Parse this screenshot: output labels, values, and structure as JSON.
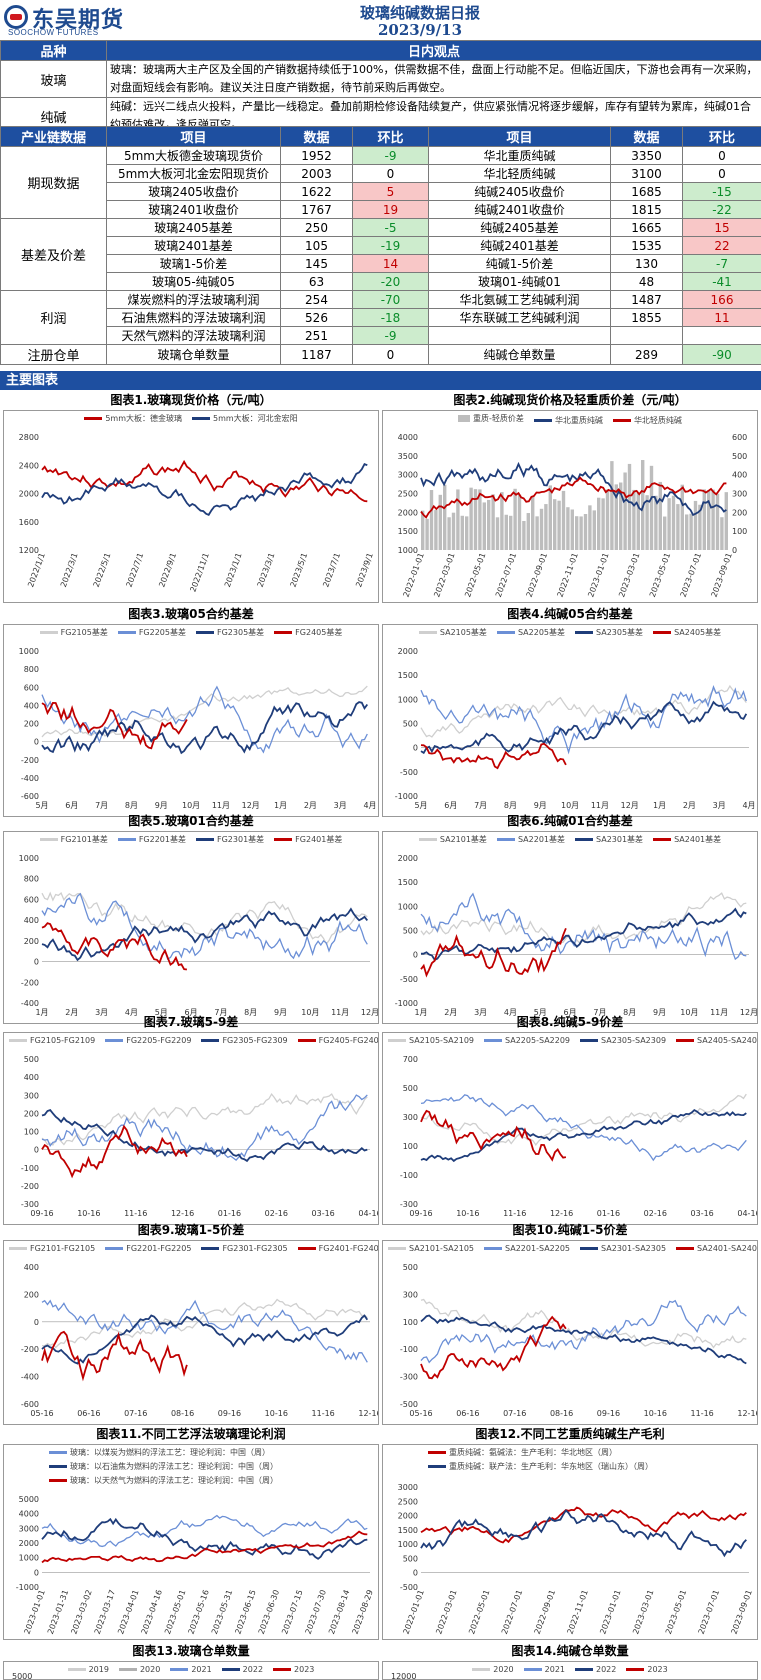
{
  "header": {
    "logo_cn": "东吴期货",
    "logo_en": "SOOCHOW FUTURES",
    "title": "玻璃纯碱数据日报",
    "date": "2023/9/13"
  },
  "views": {
    "col_variety": "品种",
    "col_view": "日内观点",
    "rows": [
      {
        "name": "玻璃",
        "text": "玻璃：玻璃两大主产区及全国的产销数据持续低于100%，供需数据不佳，盘面上行动能不足。但临近国庆，下游也会再有一次采购，对盘面短线会有影响。建议关注日度产销数据，待节前采购后再做空。"
      },
      {
        "name": "纯碱",
        "text": "纯碱：远兴二线点火投料，产量比一线稳定。叠加前期检修设备陆续复产，供应紧张情况将逐步缓解，库存有望转为累库，纯碱01合约预估难改，逢反弹可空。"
      }
    ]
  },
  "table": {
    "headers": [
      "产业链数据",
      "项目",
      "数据",
      "环比",
      "项目",
      "数据",
      "环比"
    ],
    "groups": [
      {
        "name": "期现数据",
        "rows": [
          {
            "item1": "5mm大板德金玻璃现货价",
            "v1": "1952",
            "c1": "-9",
            "s1": "grn",
            "item2": "华北重质纯碱",
            "v2": "3350",
            "c2": "0",
            "s2": ""
          },
          {
            "item1": "5mm大板河北金宏阳现货价",
            "v1": "2003",
            "c1": "0",
            "s1": "",
            "item2": "华北轻质纯碱",
            "v2": "3100",
            "c2": "0",
            "s2": ""
          },
          {
            "item1": "玻璃2405收盘价",
            "v1": "1622",
            "c1": "5",
            "s1": "red",
            "item2": "纯碱2405收盘价",
            "v2": "1685",
            "c2": "-15",
            "s2": "grn"
          },
          {
            "item1": "玻璃2401收盘价",
            "v1": "1767",
            "c1": "19",
            "s1": "red",
            "item2": "纯碱2401收盘价",
            "v2": "1815",
            "c2": "-22",
            "s2": "grn"
          }
        ]
      },
      {
        "name": "基差及价差",
        "rows": [
          {
            "item1": "玻璃2405基差",
            "v1": "250",
            "c1": "-5",
            "s1": "grn",
            "item2": "纯碱2405基差",
            "v2": "1665",
            "c2": "15",
            "s2": "red"
          },
          {
            "item1": "玻璃2401基差",
            "v1": "105",
            "c1": "-19",
            "s1": "grn",
            "item2": "纯碱2401基差",
            "v2": "1535",
            "c2": "22",
            "s2": "red"
          },
          {
            "item1": "玻璃1-5价差",
            "v1": "145",
            "c1": "14",
            "s1": "red",
            "item2": "纯碱1-5价差",
            "v2": "130",
            "c2": "-7",
            "s2": "grn"
          },
          {
            "item1": "玻璃05-纯碱05",
            "v1": "63",
            "c1": "-20",
            "s1": "grn",
            "item2": "玻璃01-纯碱01",
            "v2": "48",
            "c2": "-41",
            "s2": "grn"
          }
        ]
      },
      {
        "name": "利润",
        "rows": [
          {
            "item1": "煤炭燃料的浮法玻璃利润",
            "v1": "254",
            "c1": "-70",
            "s1": "grn",
            "item2": "华北氨碱工艺纯碱利润",
            "v2": "1487",
            "c2": "166",
            "s2": "red"
          },
          {
            "item1": "石油焦燃料的浮法玻璃利润",
            "v1": "526",
            "c1": "-18",
            "s1": "grn",
            "item2": "华东联碱工艺纯碱利润",
            "v2": "1855",
            "c2": "11",
            "s2": "red"
          },
          {
            "item1": "天然气燃料的浮法玻璃利润",
            "v1": "251",
            "c1": "-9",
            "s1": "grn",
            "item2": "",
            "v2": "",
            "c2": "",
            "s2": ""
          }
        ]
      },
      {
        "name": "注册仓单",
        "rows": [
          {
            "item1": "玻璃仓单数量",
            "v1": "1187",
            "c1": "0",
            "s1": "",
            "item2": "纯碱仓单数量",
            "v2": "289",
            "c2": "-90",
            "s2": "grn"
          }
        ]
      }
    ]
  },
  "section_title": "主要图表",
  "colors": {
    "red": "#c00000",
    "navy": "#1f3d7a",
    "blue": "#6b8fd6",
    "lightgray": "#cfcfcf",
    "gray": "#b0b0b0",
    "header_bg": "#1e4fa0"
  },
  "charts": [
    {
      "caption": "图表1.玻璃现货价格（元/吨）",
      "legend": [
        {
          "name": "5mm大板：德金玻璃",
          "color": "#c00000"
        },
        {
          "name": "5mm大板：河北金宏阳",
          "color": "#1f3d7a"
        }
      ],
      "yticks": [
        "2800",
        "2400",
        "2000",
        "1600",
        "1200"
      ],
      "xticks": [
        "2022/1/1",
        "2022/3/1",
        "2022/5/1",
        "2022/7/1",
        "2022/9/1",
        "2022/11/1",
        "2023/1/1",
        "2023/3/1",
        "2023/5/1",
        "2023/7/1",
        "2023/9/1"
      ],
      "xrot": true
    },
    {
      "caption": "图表2.纯碱现货价格及轻重质价差（元/吨）",
      "legend": [
        {
          "name": "重质-轻质价差",
          "color": "#bdbdbd"
        },
        {
          "name": "华北重质纯碱",
          "color": "#1f3d7a"
        },
        {
          "name": "华北轻质纯碱",
          "color": "#c00000"
        }
      ],
      "yticks": [
        "4000",
        "3500",
        "3000",
        "2500",
        "2000",
        "1500",
        "1000"
      ],
      "y2ticks": [
        "600",
        "500",
        "400",
        "300",
        "200",
        "100",
        "0"
      ],
      "xticks": [
        "2022-01-01",
        "2022-03-01",
        "2022-05-01",
        "2022-07-01",
        "2022-09-01",
        "2022-11-01",
        "2023-01-01",
        "2023-03-01",
        "2023-05-01",
        "2023-07-01",
        "2023-09-01"
      ],
      "xrot": true
    },
    {
      "caption": "图表3.玻璃05合约基差",
      "legend": [
        {
          "name": "FG2105基差",
          "color": "#cfcfcf"
        },
        {
          "name": "FG2205基差",
          "color": "#6b8fd6"
        },
        {
          "name": "FG2305基差",
          "color": "#1f3d7a"
        },
        {
          "name": "FG2405基差",
          "color": "#c00000"
        }
      ],
      "yticks": [
        "1000",
        "800",
        "600",
        "400",
        "200",
        "0",
        "-200",
        "-400",
        "-600"
      ],
      "xticks": [
        "5月",
        "6月",
        "7月",
        "8月",
        "9月",
        "10月",
        "11月",
        "12月",
        "1月",
        "2月",
        "3月",
        "4月"
      ]
    },
    {
      "caption": "图表4.纯碱05合约基差",
      "legend": [
        {
          "name": "SA2105基差",
          "color": "#cfcfcf"
        },
        {
          "name": "SA2205基差",
          "color": "#6b8fd6"
        },
        {
          "name": "SA2305基差",
          "color": "#1f3d7a"
        },
        {
          "name": "SA2405基差",
          "color": "#c00000"
        }
      ],
      "yticks": [
        "2000",
        "1500",
        "1000",
        "500",
        "0",
        "-500",
        "-1000"
      ],
      "xticks": [
        "5月",
        "6月",
        "7月",
        "8月",
        "9月",
        "10月",
        "11月",
        "12月",
        "1月",
        "2月",
        "3月",
        "4月"
      ]
    },
    {
      "caption": "图表5.玻璃01合约基差",
      "legend": [
        {
          "name": "FG2101基差",
          "color": "#cfcfcf"
        },
        {
          "name": "FG2201基差",
          "color": "#6b8fd6"
        },
        {
          "name": "FG2301基差",
          "color": "#1f3d7a"
        },
        {
          "name": "FG2401基差",
          "color": "#c00000"
        }
      ],
      "yticks": [
        "1000",
        "800",
        "600",
        "400",
        "200",
        "0",
        "-200",
        "-400"
      ],
      "xticks": [
        "1月",
        "2月",
        "3月",
        "4月",
        "5月",
        "6月",
        "7月",
        "8月",
        "9月",
        "10月",
        "11月",
        "12月"
      ]
    },
    {
      "caption": "图表6.纯碱01合约基差",
      "legend": [
        {
          "name": "SA2101基差",
          "color": "#cfcfcf"
        },
        {
          "name": "SA2201基差",
          "color": "#6b8fd6"
        },
        {
          "name": "SA2301基差",
          "color": "#1f3d7a"
        },
        {
          "name": "SA2401基差",
          "color": "#c00000"
        }
      ],
      "yticks": [
        "2000",
        "1500",
        "1000",
        "500",
        "0",
        "-500",
        "-1000"
      ],
      "xticks": [
        "1月",
        "2月",
        "3月",
        "4月",
        "5月",
        "6月",
        "7月",
        "8月",
        "9月",
        "10月",
        "11月",
        "12月"
      ]
    },
    {
      "caption": "图表7.玻璃5-9差",
      "legend": [
        {
          "name": "FG2105-FG2109",
          "color": "#cfcfcf"
        },
        {
          "name": "FG2205-FG2209",
          "color": "#6b8fd6"
        },
        {
          "name": "FG2305-FG2309",
          "color": "#1f3d7a"
        },
        {
          "name": "FG2405-FG2409",
          "color": "#c00000"
        }
      ],
      "yticks": [
        "500",
        "400",
        "300",
        "200",
        "100",
        "0",
        "-100",
        "-200",
        "-300"
      ],
      "xticks": [
        "09-16",
        "10-16",
        "11-16",
        "12-16",
        "01-16",
        "02-16",
        "03-16",
        "04-16"
      ]
    },
    {
      "caption": "图表8.纯碱5-9价差",
      "legend": [
        {
          "name": "SA2105-SA2109",
          "color": "#cfcfcf"
        },
        {
          "name": "SA2205-SA2209",
          "color": "#6b8fd6"
        },
        {
          "name": "SA2305-SA2309",
          "color": "#1f3d7a"
        },
        {
          "name": "SA2405-SA2409",
          "color": "#c00000"
        }
      ],
      "yticks": [
        "700",
        "500",
        "300",
        "100",
        "-100",
        "-300"
      ],
      "xticks": [
        "09-16",
        "10-16",
        "11-16",
        "12-16",
        "01-16",
        "02-16",
        "03-16",
        "04-16"
      ]
    },
    {
      "caption": "图表9.玻璃1-5价差",
      "legend": [
        {
          "name": "FG2101-FG2105",
          "color": "#cfcfcf"
        },
        {
          "name": "FG2201-FG2205",
          "color": "#6b8fd6"
        },
        {
          "name": "FG2301-FG2305",
          "color": "#1f3d7a"
        },
        {
          "name": "FG2401-FG2405",
          "color": "#c00000"
        }
      ],
      "yticks": [
        "400",
        "200",
        "0",
        "-200",
        "-400",
        "-600"
      ],
      "xticks": [
        "05-16",
        "06-16",
        "07-16",
        "08-16",
        "09-16",
        "10-16",
        "11-16",
        "12-16"
      ]
    },
    {
      "caption": "图表10.纯碱1-5价差",
      "legend": [
        {
          "name": "SA2101-SA2105",
          "color": "#cfcfcf"
        },
        {
          "name": "SA2201-SA2205",
          "color": "#6b8fd6"
        },
        {
          "name": "SA2301-SA2305",
          "color": "#1f3d7a"
        },
        {
          "name": "SA2401-SA2405",
          "color": "#c00000"
        }
      ],
      "yticks": [
        "500",
        "300",
        "100",
        "-100",
        "-300",
        "-500"
      ],
      "xticks": [
        "05-16",
        "06-16",
        "07-16",
        "08-16",
        "09-16",
        "10-16",
        "11-16",
        "12-16"
      ]
    },
    {
      "caption": "图表11.不同工艺浮法玻璃理论利润",
      "legend": [
        {
          "name": "玻璃：以煤炭为燃料的浮法工艺：理论利润：中国（周）",
          "color": "#6b8fd6"
        },
        {
          "name": "玻璃：以石油焦为燃料的浮法工艺：理论利润：中国（周）",
          "color": "#1f3d7a"
        },
        {
          "name": "玻璃：以天然气为燃料的浮法工艺：理论利润：中国（周）",
          "color": "#c00000"
        }
      ],
      "yticks": [
        "5000",
        "4000",
        "3000",
        "2000",
        "1000",
        "0",
        "-1000"
      ],
      "xticks": [
        "2023-01-01",
        "2023-01-31",
        "2023-03-02",
        "2023-03-17",
        "2023-04-01",
        "2023-04-16",
        "2023-05-01",
        "2023-05-16",
        "2023-05-31",
        "2023-06-15",
        "2023-06-30",
        "2023-07-15",
        "2023-07-30",
        "2023-08-14",
        "2023-08-29"
      ],
      "xrot": true
    },
    {
      "caption": "图表12.不同工艺重质纯碱生产毛利",
      "legend": [
        {
          "name": "重质纯碱：氨碱法：生产毛利：华北地区（周）",
          "color": "#c00000"
        },
        {
          "name": "重质纯碱：联产法：生产毛利：华东地区（瑞山东）（周）",
          "color": "#1f3d7a"
        }
      ],
      "yticks": [
        "3000",
        "2500",
        "2000",
        "1500",
        "1000",
        "500",
        "0",
        "-500"
      ],
      "xticks": [
        "2022-01-01",
        "2022-03-01",
        "2022-05-01",
        "2022-07-01",
        "2022-09-01",
        "2022-11-01",
        "2023-01-01",
        "2023-03-01",
        "2023-05-01",
        "2023-07-01",
        "2023-09-01"
      ],
      "xrot": true
    },
    {
      "caption": "图表13.玻璃仓单数量",
      "legend": [
        {
          "name": "2019",
          "color": "#cfcfcf"
        },
        {
          "name": "2020",
          "color": "#b0b0b0"
        },
        {
          "name": "2021",
          "color": "#6b8fd6"
        },
        {
          "name": "2022",
          "color": "#1f3d7a"
        },
        {
          "name": "2023",
          "color": "#c00000"
        }
      ],
      "yticks": [
        "5000"
      ],
      "xticks": []
    },
    {
      "caption": "图表14.纯碱仓单数量",
      "legend": [
        {
          "name": "2020",
          "color": "#cfcfcf"
        },
        {
          "name": "2021",
          "color": "#6b8fd6"
        },
        {
          "name": "2022",
          "color": "#1f3d7a"
        },
        {
          "name": "2023",
          "color": "#c00000"
        }
      ],
      "yticks": [
        "12000"
      ],
      "xticks": []
    }
  ]
}
